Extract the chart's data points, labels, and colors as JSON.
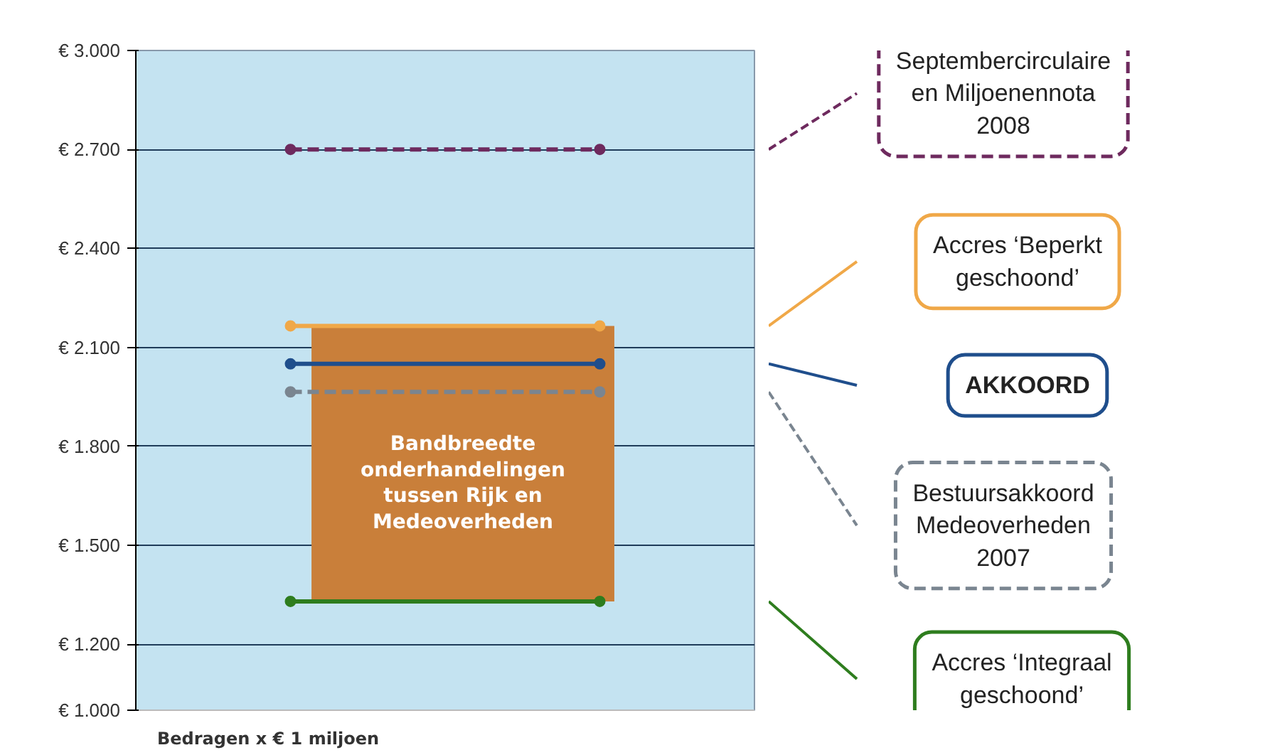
{
  "chart_data": {
    "type": "line",
    "categories": [
      null,
      null
    ],
    "ylim": [
      1000,
      3000
    ],
    "yticks": [
      {
        "value": 1000,
        "label": "€ 1.000"
      },
      {
        "value": 1200,
        "label": "€ 1.200"
      },
      {
        "value": 1500,
        "label": "€ 1.500"
      },
      {
        "value": 1800,
        "label": "€ 1.800"
      },
      {
        "value": 2100,
        "label": "€ 2.100"
      },
      {
        "value": 2400,
        "label": "€ 2.400"
      },
      {
        "value": 2700,
        "label": "€ 2.700"
      },
      {
        "value": 3000,
        "label": "€ 3.000"
      }
    ],
    "tick_labels": "y",
    "grid": "y",
    "marker": "circle",
    "bands": [
      {
        "axis": "y",
        "from": 1330,
        "to": 2165,
        "label": "Bandbreedte\nonderhandelingen\ntussen Rijk en\nMedeoverheden",
        "color": "#c97f3a"
      }
    ],
    "series": [
      {
        "name": "Septembercirculaire\nen Miljoenennota\n2008",
        "color": "#6e2a5e",
        "values": [
          2700,
          2700
        ],
        "line_style": "dashed"
      },
      {
        "name": "Accres ‘Beperkt\ngeschoond’",
        "color": "#f0a848",
        "values": [
          2165,
          2165
        ],
        "line_style": "solid"
      },
      {
        "name": "AKKOORD",
        "color": "#1f4e8c",
        "values": [
          2050,
          2050
        ],
        "line_style": "solid"
      },
      {
        "name": "Bestuursakkoord\nMedeoverheden\n2007",
        "color": "#7a8590",
        "values": [
          1965,
          1965
        ],
        "line_style": "dashed"
      },
      {
        "name": "Accres ‘Integraal\ngeschoond’",
        "color": "#2e7d1e",
        "values": [
          1330,
          1330
        ],
        "line_style": "solid"
      }
    ],
    "annotations": [
      "Bedragen x € 1 miljoen"
    ]
  }
}
